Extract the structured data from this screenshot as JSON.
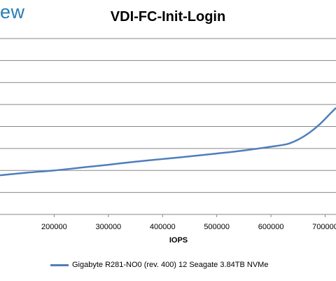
{
  "logo_text": "ew",
  "chart_data": {
    "type": "line",
    "title": "VDI-FC-Init-Login",
    "xlabel": "IOPS",
    "ylabel": "",
    "x_ticks": [
      200000,
      300000,
      400000,
      500000,
      600000,
      700000
    ],
    "x_tick_labels": [
      "200000",
      "300000",
      "400000",
      "500000",
      "600000",
      "700000"
    ],
    "xlim": [
      100000,
      720000
    ],
    "ylim": [
      0,
      8
    ],
    "y_grid": [
      1,
      2,
      3,
      4,
      5,
      6,
      7,
      8
    ],
    "grid": "horizontal",
    "legend_position": "bottom",
    "series": [
      {
        "name": "Gigabyte R281-NO0 (rev. 400) 12 Seagate 3.84TB NVMe",
        "color": "#4f7ebc",
        "x": [
          100000,
          150000,
          200000,
          250000,
          300000,
          350000,
          400000,
          450000,
          500000,
          550000,
          600000,
          630000,
          650000,
          670000,
          690000,
          710000,
          720000
        ],
        "y": [
          1.78,
          1.9,
          2.0,
          2.13,
          2.26,
          2.4,
          2.52,
          2.64,
          2.77,
          2.91,
          3.08,
          3.2,
          3.4,
          3.7,
          4.1,
          4.6,
          4.85
        ]
      }
    ]
  }
}
